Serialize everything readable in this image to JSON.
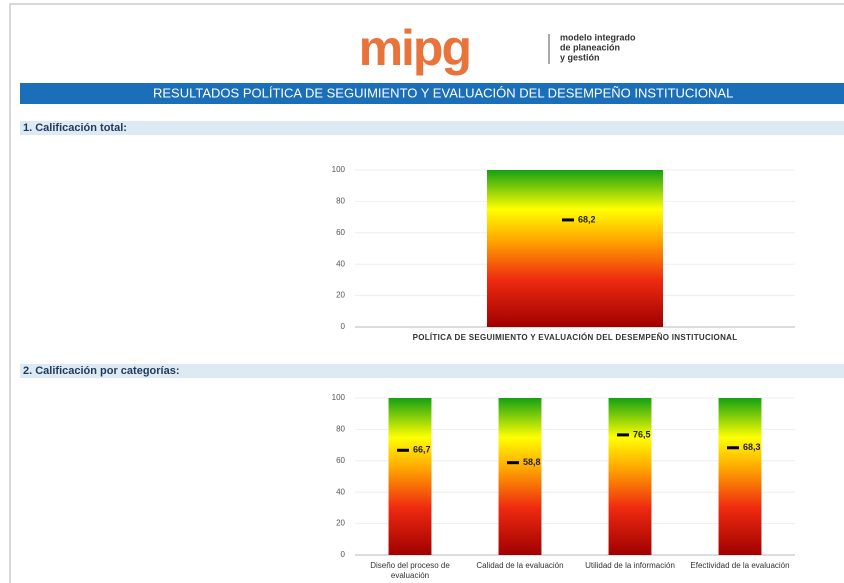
{
  "header": {
    "logo": "mipg",
    "tagline": [
      "modelo integrado",
      "de planeación",
      "y gestión"
    ],
    "title": "RESULTADOS POLÍTICA DE SEGUIMIENTO Y EVALUACIÓN DEL DESEMPEÑO INSTITUCIONAL"
  },
  "sections": [
    "1. Calificación total:",
    "2. Calificación por categorías:"
  ],
  "chart_data": [
    {
      "type": "bar",
      "categories": [
        "POLÍTICA DE SEGUIMIENTO Y EVALUACIÓN DEL DESEMPEÑO INSTITUCIONAL"
      ],
      "values": [
        68.2
      ],
      "value_labels": [
        "68,2"
      ],
      "ylim": [
        0,
        100
      ],
      "yticks": [
        0,
        20,
        40,
        60,
        80,
        100
      ],
      "grid": true
    },
    {
      "type": "bar",
      "categories": [
        "Diseño del proceso de evaluación",
        "Calidad de la evaluación",
        "Utilidad de la información",
        "Efectividad de la evaluación"
      ],
      "values": [
        66.7,
        58.8,
        76.5,
        68.3
      ],
      "value_labels": [
        "66,7",
        "58,8",
        "76,5",
        "68,3"
      ],
      "ylim": [
        0,
        100
      ],
      "yticks": [
        0,
        20,
        40,
        60,
        80,
        100
      ],
      "grid": true
    }
  ]
}
